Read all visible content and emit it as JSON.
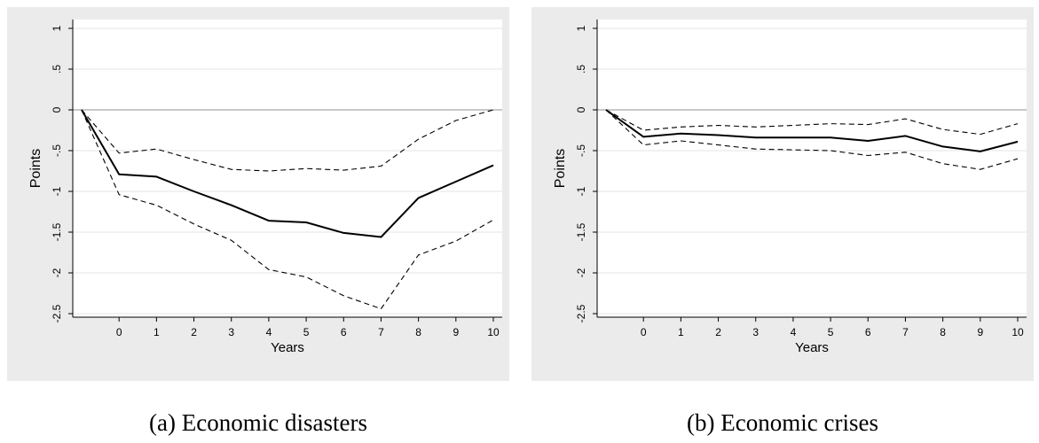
{
  "chart_data": [
    {
      "type": "line",
      "caption": "(a) Economic disasters",
      "xlabel": "Years",
      "ylabel": "Points",
      "xlim": [
        -1,
        10
      ],
      "ylim": [
        -2.5,
        1
      ],
      "xticks": [
        0,
        1,
        2,
        3,
        4,
        5,
        6,
        7,
        8,
        9,
        10
      ],
      "xtick_labels": [
        "0",
        "1",
        "2",
        "3",
        "4",
        "5",
        "6",
        "7",
        "8",
        "9",
        "10"
      ],
      "yticks": [
        1,
        0.5,
        0,
        -0.5,
        -1,
        -1.5,
        -2,
        -2.5
      ],
      "ytick_labels": [
        "1",
        ".5",
        "0",
        "-.5",
        "-1",
        "-1.5",
        "-2",
        "-2.5"
      ],
      "reference_line_y": 0,
      "grid": true,
      "x": [
        -1,
        0,
        1,
        2,
        3,
        4,
        5,
        6,
        7,
        8,
        9,
        10
      ],
      "series": [
        {
          "role": "estimate",
          "style": "solid",
          "values": [
            0,
            -0.79,
            -0.82,
            -1.0,
            -1.17,
            -1.36,
            -1.38,
            -1.51,
            -1.56,
            -1.08,
            -0.88,
            -0.68
          ]
        },
        {
          "role": "upper",
          "style": "dashed",
          "values": [
            0,
            -0.53,
            -0.48,
            -0.61,
            -0.73,
            -0.75,
            -0.72,
            -0.74,
            -0.69,
            -0.36,
            -0.13,
            0.0
          ]
        },
        {
          "role": "lower",
          "style": "dashed",
          "values": [
            0,
            -1.04,
            -1.17,
            -1.4,
            -1.6,
            -1.96,
            -2.05,
            -2.28,
            -2.44,
            -1.78,
            -1.61,
            -1.35
          ]
        }
      ]
    },
    {
      "type": "line",
      "caption": "(b) Economic crises",
      "xlabel": "Years",
      "ylabel": "Points",
      "xlim": [
        -1,
        10
      ],
      "ylim": [
        -2.5,
        1
      ],
      "xticks": [
        0,
        1,
        2,
        3,
        4,
        5,
        6,
        7,
        8,
        9,
        10
      ],
      "xtick_labels": [
        "0",
        "1",
        "2",
        "3",
        "4",
        "5",
        "6",
        "7",
        "8",
        "9",
        "10"
      ],
      "yticks": [
        1,
        0.5,
        0,
        -0.5,
        -1,
        -1.5,
        -2,
        -2.5
      ],
      "ytick_labels": [
        "1",
        ".5",
        "0",
        "-.5",
        "-1",
        "-1.5",
        "-2",
        "-2.5"
      ],
      "reference_line_y": 0,
      "grid": true,
      "x": [
        -1,
        0,
        1,
        2,
        3,
        4,
        5,
        6,
        7,
        8,
        9,
        10
      ],
      "series": [
        {
          "role": "estimate",
          "style": "solid",
          "values": [
            0,
            -0.33,
            -0.29,
            -0.31,
            -0.34,
            -0.34,
            -0.34,
            -0.38,
            -0.32,
            -0.45,
            -0.51,
            -0.39
          ]
        },
        {
          "role": "upper",
          "style": "dashed",
          "values": [
            0,
            -0.25,
            -0.21,
            -0.19,
            -0.21,
            -0.19,
            -0.17,
            -0.18,
            -0.11,
            -0.24,
            -0.3,
            -0.17
          ]
        },
        {
          "role": "lower",
          "style": "dashed",
          "values": [
            0,
            -0.43,
            -0.38,
            -0.43,
            -0.48,
            -0.49,
            -0.5,
            -0.56,
            -0.52,
            -0.66,
            -0.73,
            -0.6
          ]
        }
      ]
    }
  ]
}
